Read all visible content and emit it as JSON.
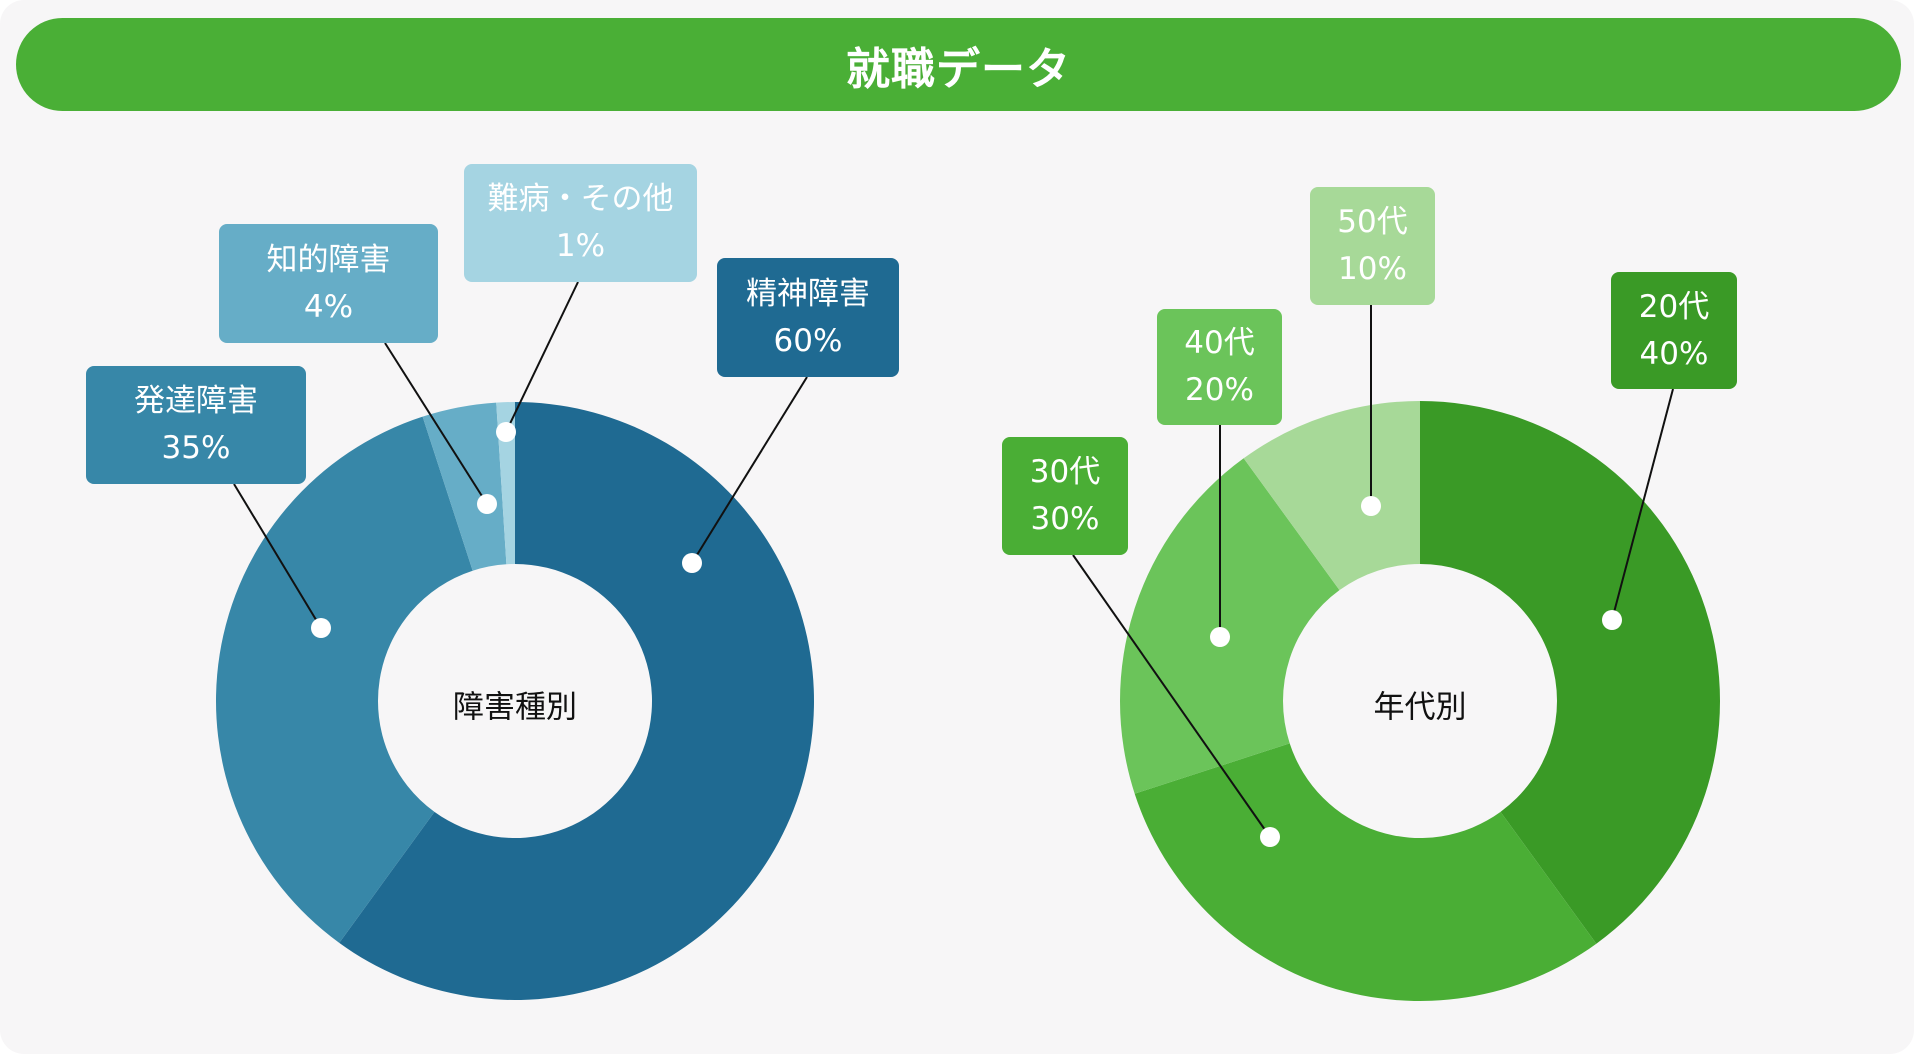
{
  "title": "就職データ",
  "colors": {
    "banner": "#4aaf36",
    "background": "#f7f6f7"
  },
  "chart_data": [
    {
      "type": "pie",
      "variant": "donut",
      "center_label": "障害種別",
      "categories": [
        "精神障害",
        "発達障害",
        "知的障害",
        "難病・その他"
      ],
      "values": [
        60,
        35,
        4,
        1
      ],
      "value_labels": [
        "60%",
        "35%",
        "4%",
        "1%"
      ],
      "colors": [
        "#1f6a92",
        "#3787a8",
        "#66adc7",
        "#a5d4e2"
      ],
      "start_angle": "12 o'clock, clockwise"
    },
    {
      "type": "pie",
      "variant": "donut",
      "center_label": "年代別",
      "categories": [
        "20代",
        "30代",
        "40代",
        "50代"
      ],
      "values": [
        40,
        30,
        20,
        10
      ],
      "value_labels": [
        "40%",
        "30%",
        "20%",
        "10%"
      ],
      "colors": [
        "#3a9a26",
        "#4aae35",
        "#6bc45a",
        "#a7d998"
      ],
      "start_angle": "12 o'clock, clockwise"
    }
  ]
}
